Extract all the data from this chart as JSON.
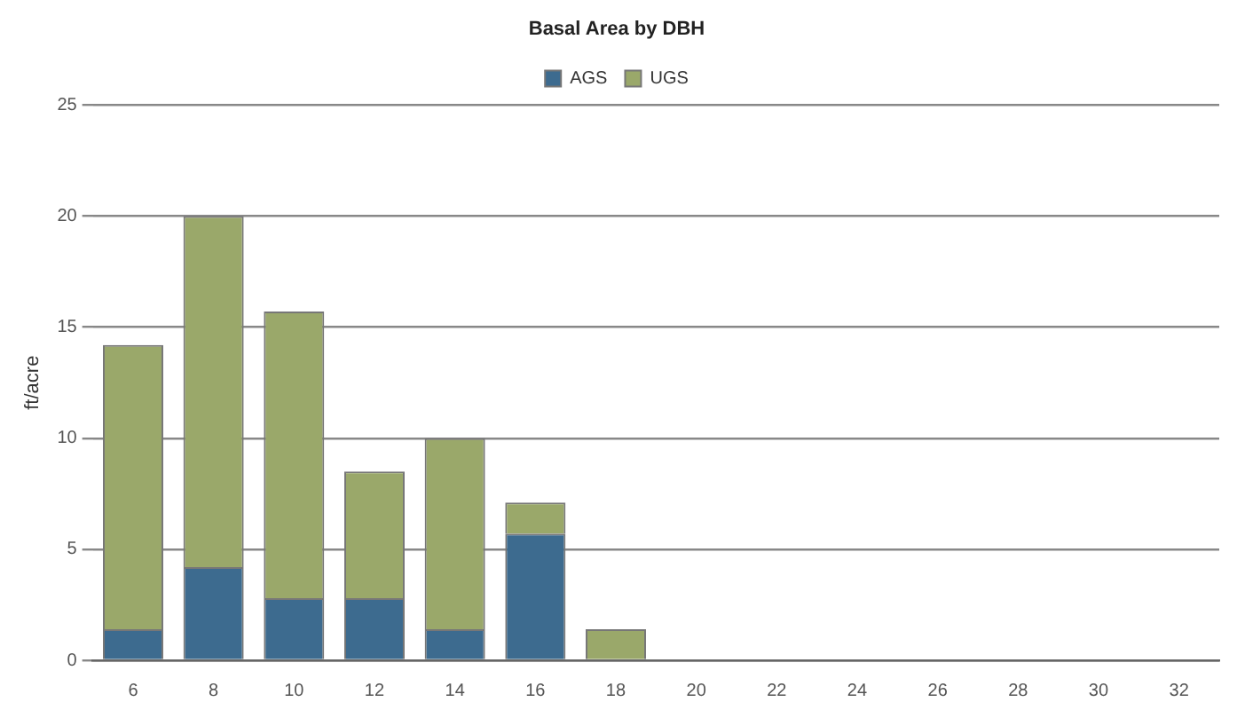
{
  "chart_data": {
    "type": "bar",
    "title": "Basal Area by DBH",
    "ylabel": "ft/acre",
    "stacked": true,
    "legend": "top",
    "grid": "y",
    "categories": [
      "6",
      "8",
      "10",
      "12",
      "14",
      "16",
      "18",
      "20",
      "22",
      "24",
      "26",
      "28",
      "30",
      "32"
    ],
    "series": [
      {
        "name": "AGS",
        "color": "#3d6b8f",
        "values": [
          1.4,
          4.2,
          2.8,
          2.8,
          1.4,
          5.7,
          0,
          0,
          0,
          0,
          0,
          0,
          0,
          0
        ]
      },
      {
        "name": "UGS",
        "color": "#9aa86a",
        "values": [
          12.8,
          15.8,
          12.9,
          5.7,
          8.6,
          1.4,
          1.4,
          0,
          0,
          0,
          0,
          0,
          0,
          0
        ]
      }
    ],
    "ylim": [
      0,
      25
    ],
    "yticks": [
      0,
      5,
      10,
      15,
      20,
      25
    ]
  }
}
